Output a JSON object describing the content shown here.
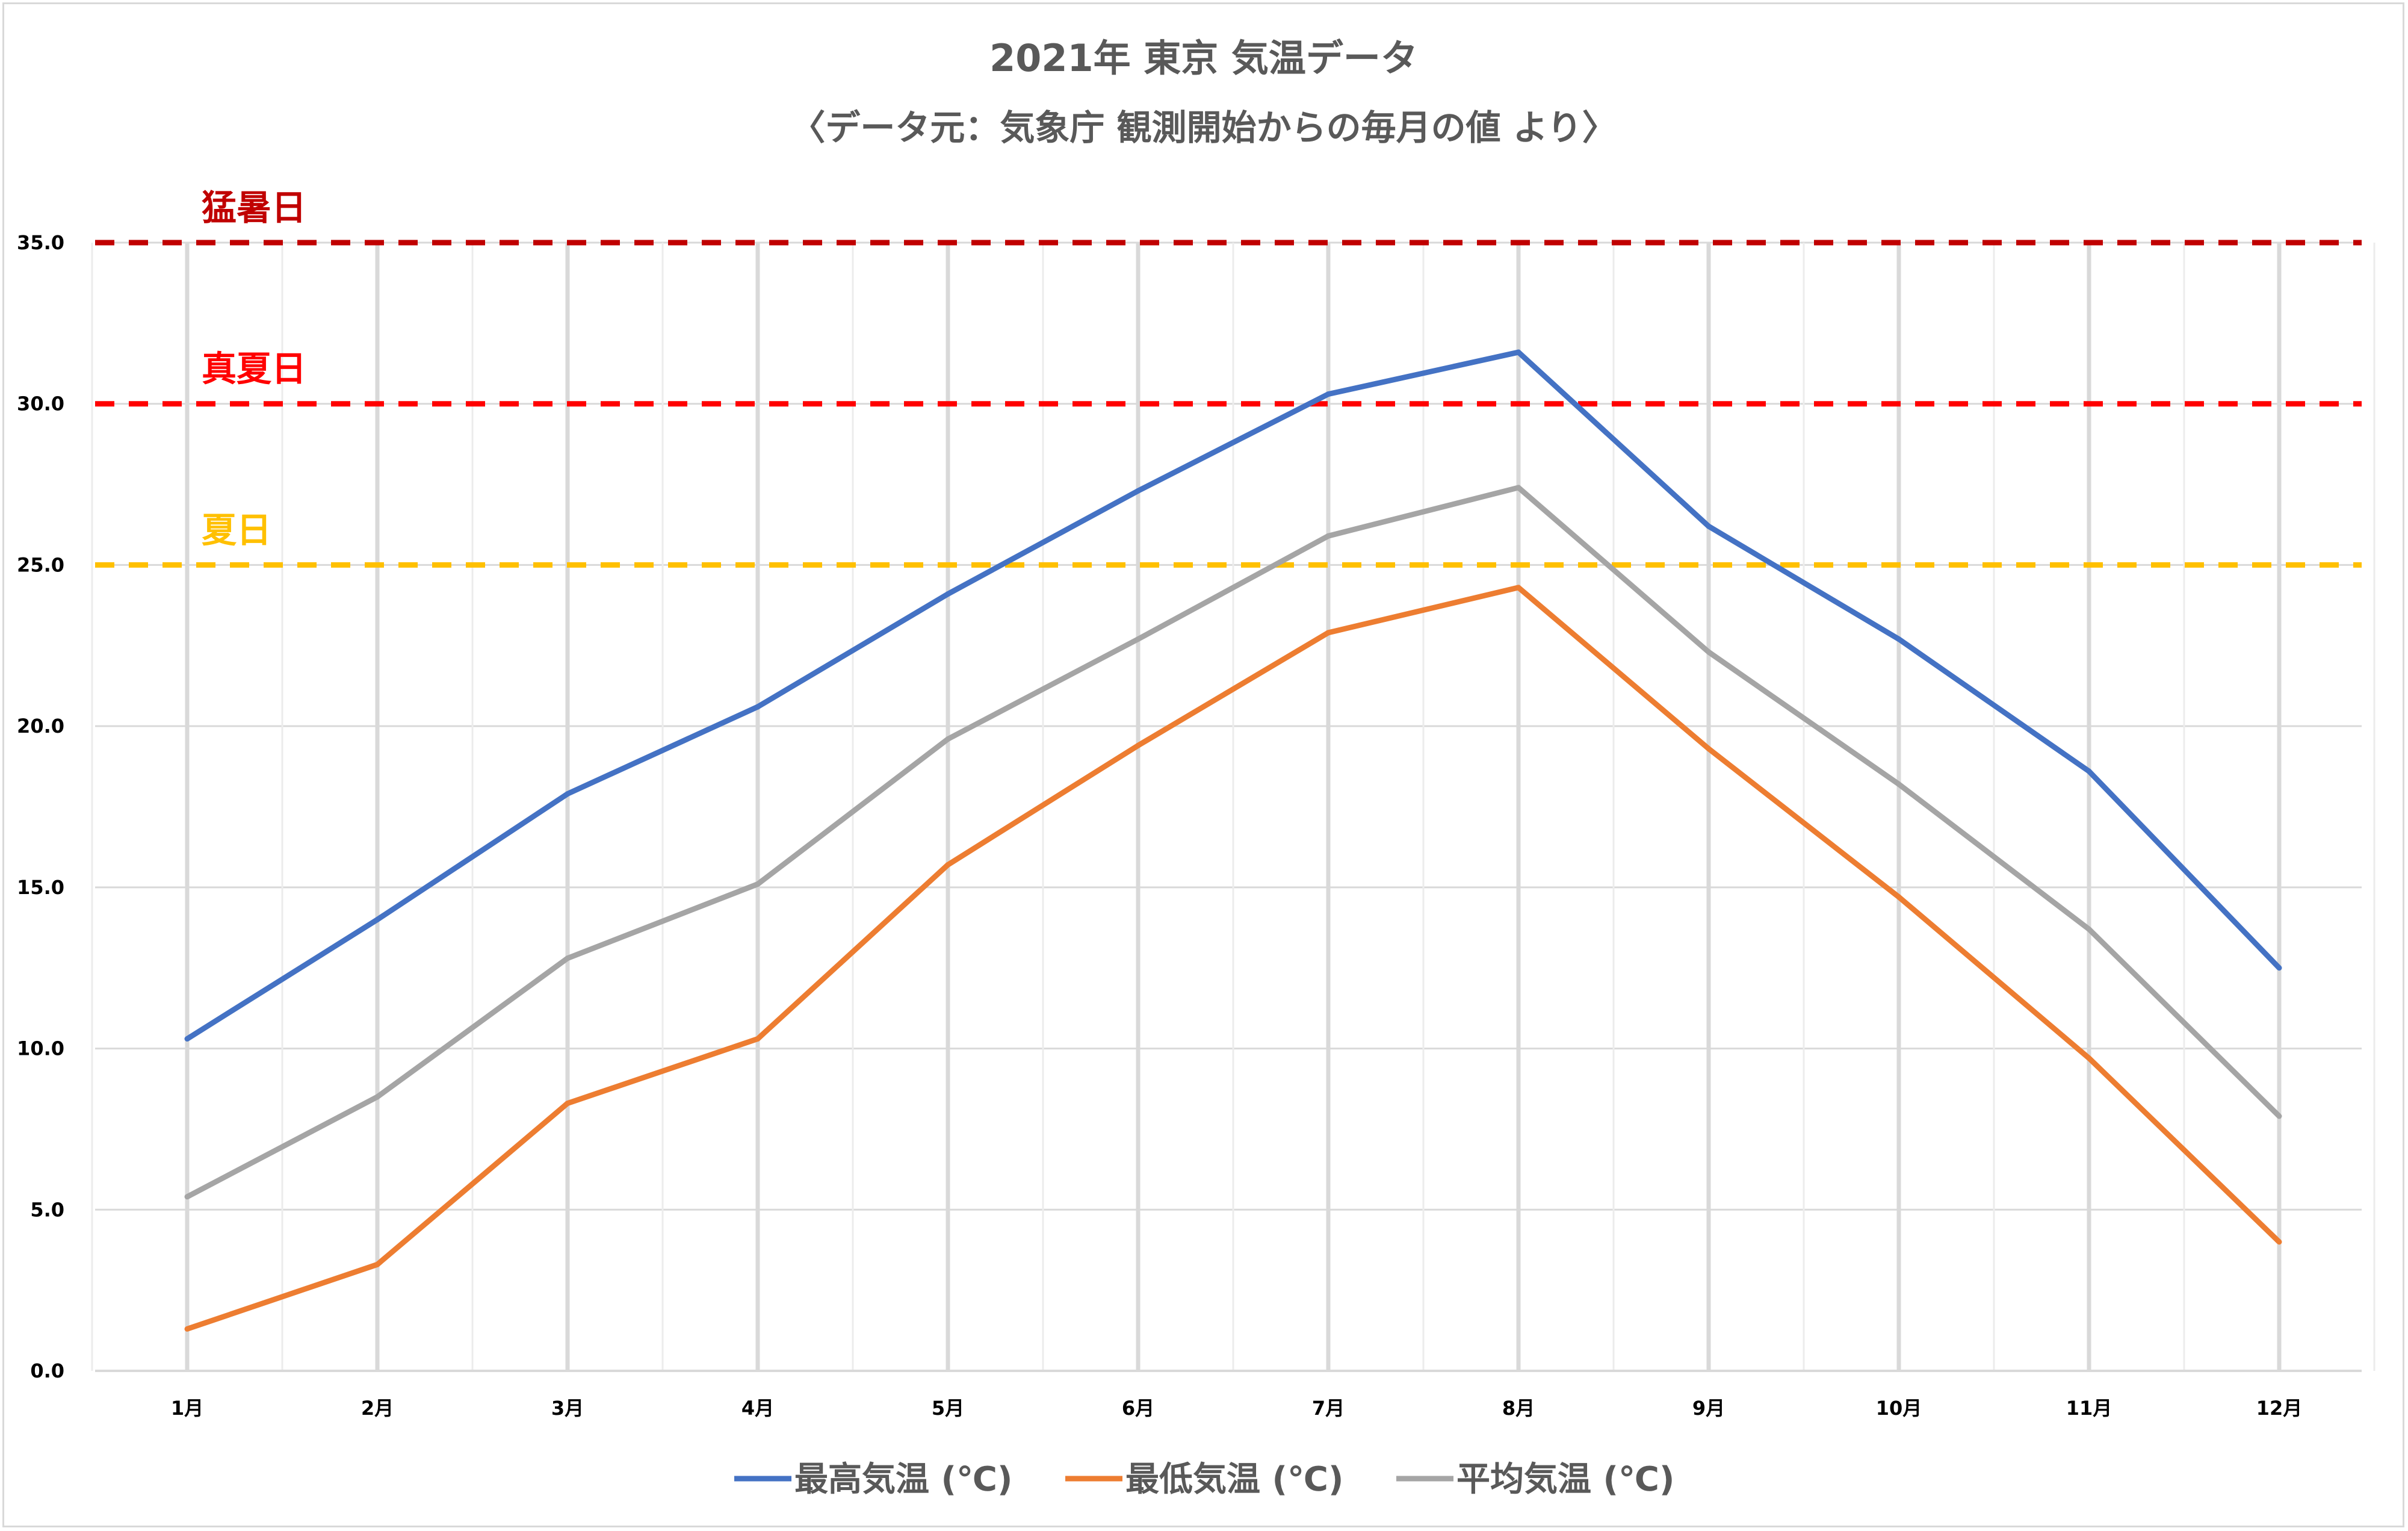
{
  "chart_data": {
    "type": "line",
    "title": "2021年 東京 気温データ",
    "subtitle": "〈データ元：気象庁 観測開始からの毎月の値 より〉",
    "categories": [
      "1月",
      "2月",
      "3月",
      "4月",
      "5月",
      "6月",
      "7月",
      "8月",
      "9月",
      "10月",
      "11月",
      "12月"
    ],
    "ylim": [
      0,
      35
    ],
    "yticks": [
      "0.0",
      "5.0",
      "10.0",
      "15.0",
      "20.0",
      "25.0",
      "30.0",
      "35.0"
    ],
    "grid": true,
    "legend_position": "bottom",
    "series": [
      {
        "name": "最高気温 (℃)",
        "color": "#4472c4",
        "values": [
          10.3,
          14.0,
          17.9,
          20.6,
          24.1,
          27.3,
          30.3,
          31.6,
          26.2,
          22.7,
          18.6,
          12.5
        ]
      },
      {
        "name": "最低気温 (℃)",
        "color": "#ed7d31",
        "values": [
          1.3,
          3.3,
          8.3,
          10.3,
          15.7,
          19.4,
          22.9,
          24.3,
          19.3,
          14.7,
          9.7,
          4.0
        ]
      },
      {
        "name": "平均気温 (℃)",
        "color": "#a5a5a5",
        "values": [
          5.4,
          8.5,
          12.8,
          15.1,
          19.6,
          22.7,
          25.9,
          27.4,
          22.3,
          18.2,
          13.7,
          7.9
        ]
      }
    ],
    "reference_lines": [
      {
        "label": "猛暑日",
        "value": 35,
        "color": "#c00000"
      },
      {
        "label": "真夏日",
        "value": 30,
        "color": "#ff0000"
      },
      {
        "label": "夏日",
        "value": 25,
        "color": "#ffc000"
      }
    ]
  }
}
